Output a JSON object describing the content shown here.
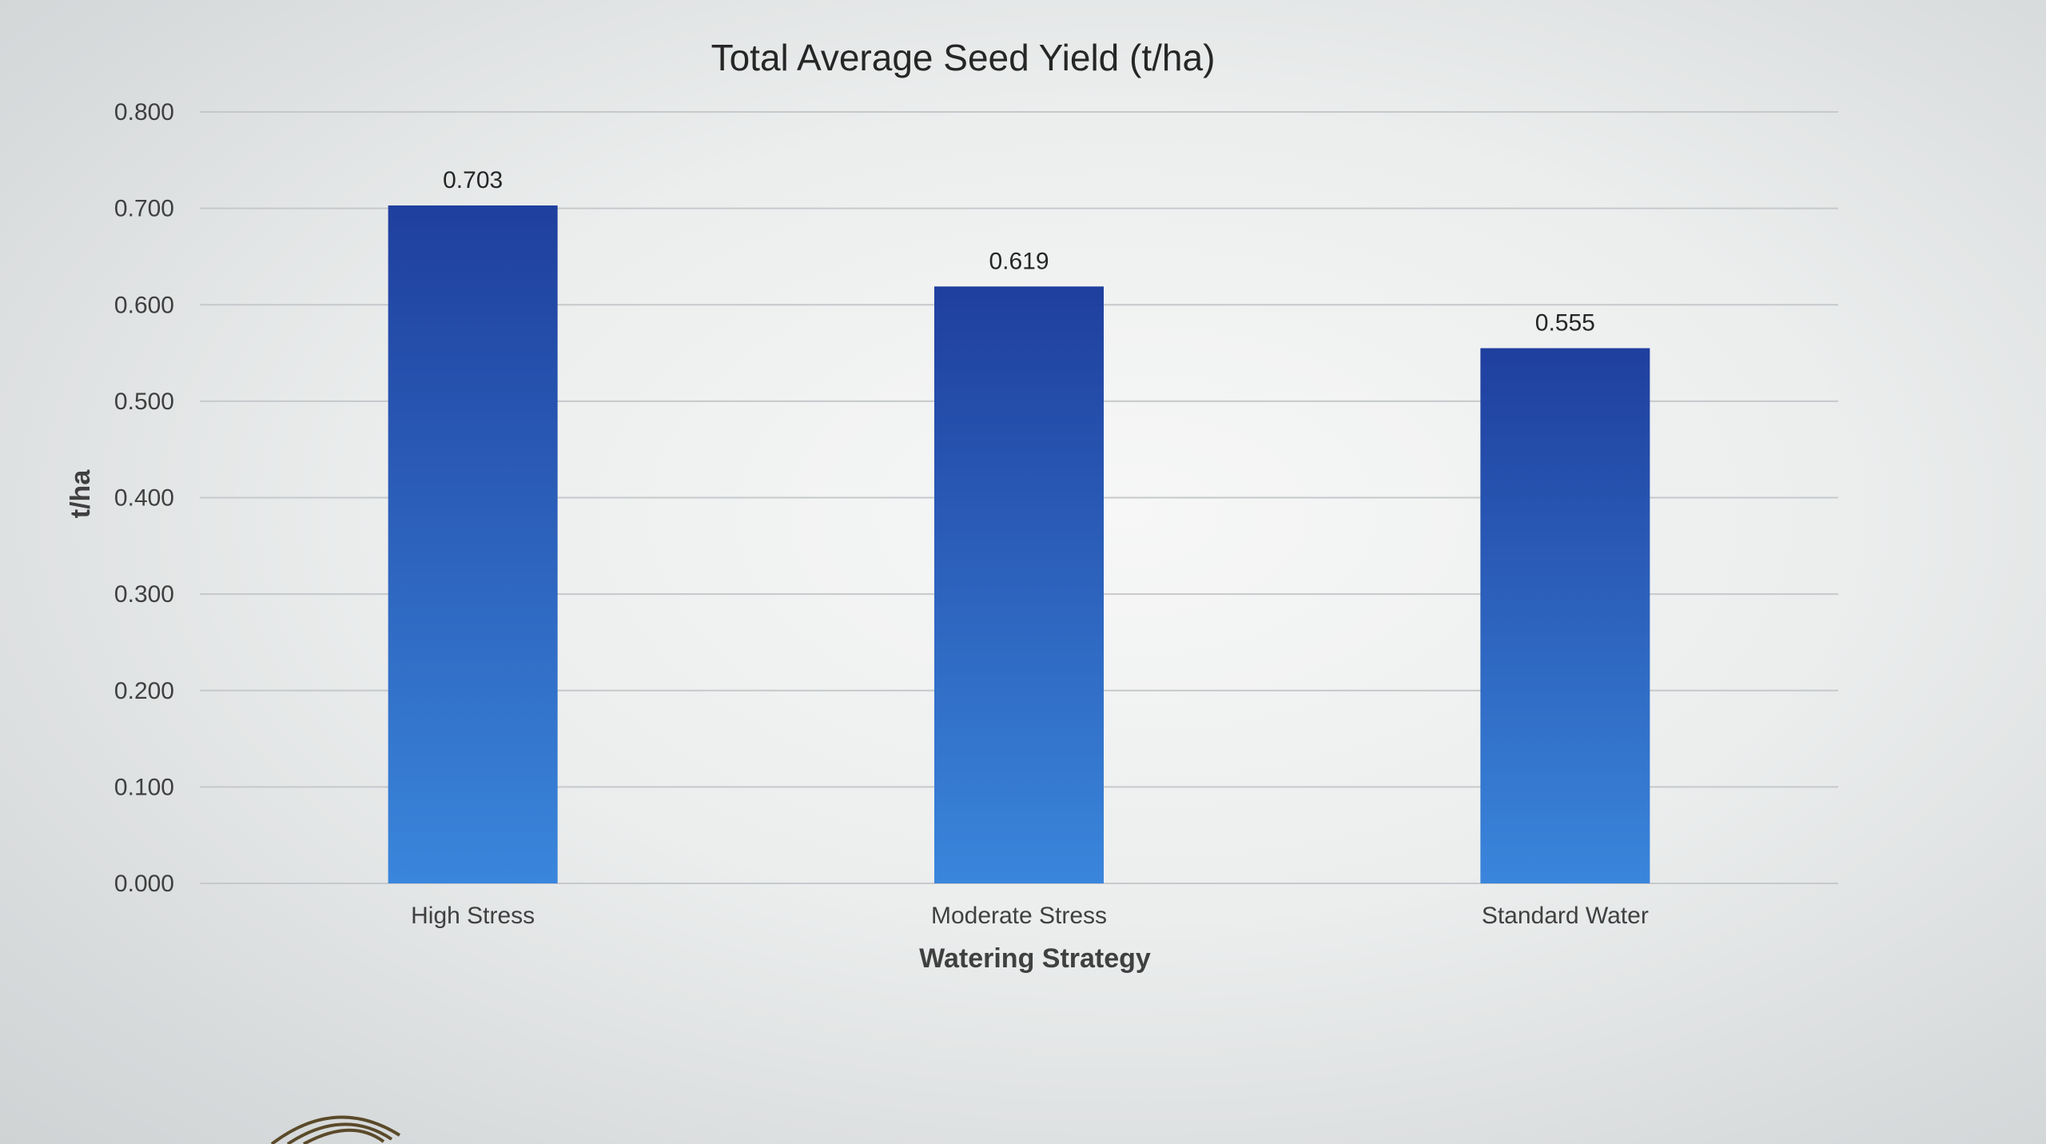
{
  "chart_data": {
    "type": "bar",
    "title": "Total Average Seed Yield (t/ha)",
    "xlabel": "Watering Strategy",
    "ylabel": "t/ha",
    "categories": [
      "High Stress",
      "Moderate Stress",
      "Standard Water"
    ],
    "values": [
      0.703,
      0.619,
      0.555
    ],
    "data_labels": [
      "0.703",
      "0.619",
      "0.555"
    ],
    "ylim": [
      0,
      0.8
    ],
    "yticks": [
      0,
      0.1,
      0.2,
      0.3,
      0.4,
      0.5,
      0.6,
      0.7,
      0.8
    ],
    "ytick_labels": [
      "0.000",
      "0.100",
      "0.200",
      "0.300",
      "0.400",
      "0.500",
      "0.600",
      "0.700",
      "0.800"
    ],
    "grid": true,
    "legend": "none",
    "bar_color_top": "#1f3f9e",
    "bar_color_bottom": "#3a86dc"
  }
}
